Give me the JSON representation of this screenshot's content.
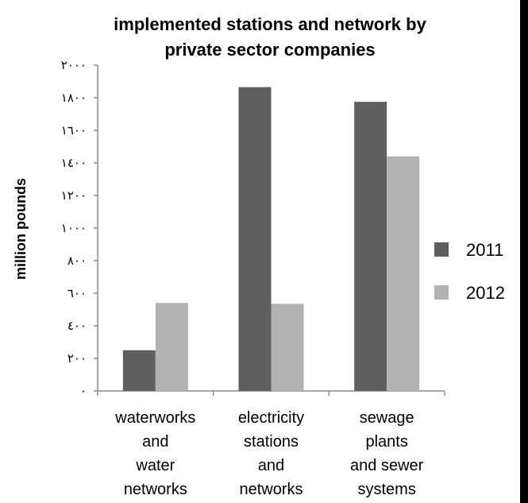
{
  "chart_data": {
    "type": "bar",
    "title_lines": [
      "implemented stations and network by",
      "private sector companies"
    ],
    "ylabel": "million pounds",
    "ylim": [
      0,
      2000
    ],
    "yticks": [
      0,
      200,
      400,
      600,
      800,
      1000,
      1200,
      1400,
      1600,
      1800,
      2000
    ],
    "ytick_labels": [
      "٠",
      "٢٠٠",
      "٤٠٠",
      "٦٠٠",
      "٨٠٠",
      "١٠٠٠",
      "١٢٠٠",
      "١٤٠٠",
      "١٦٠٠",
      "١٨٠٠",
      "٢٠٠٠"
    ],
    "categories": [
      [
        "waterworks",
        "and",
        "water",
        "networks"
      ],
      [
        "electricity",
        "stations",
        "and",
        "networks"
      ],
      [
        "sewage",
        "plants",
        "and sewer",
        "systems"
      ]
    ],
    "series": [
      {
        "name": "2011",
        "color": "#5f5f5f",
        "values": [
          250,
          1865,
          1775
        ]
      },
      {
        "name": "2012",
        "color": "#b2b2b2",
        "values": [
          540,
          535,
          1440
        ]
      }
    ],
    "legend_position": "right",
    "grid": false
  }
}
